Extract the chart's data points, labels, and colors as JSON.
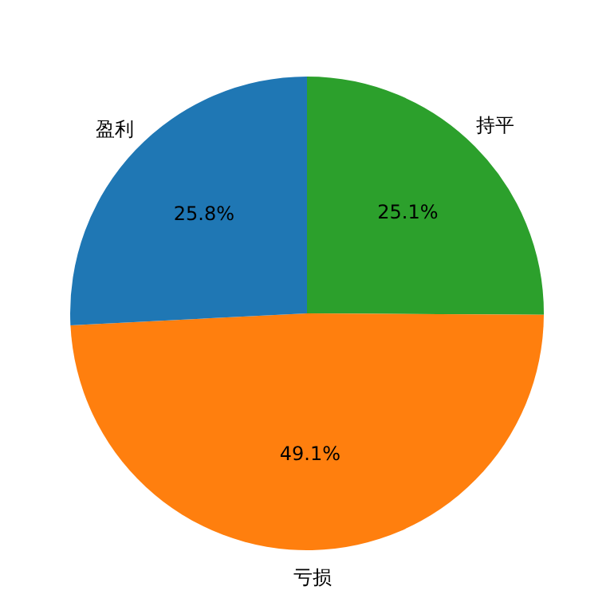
{
  "chart_data": {
    "type": "pie",
    "categories": [
      "盈利",
      "亏损",
      "持平"
    ],
    "values": [
      25.8,
      49.1,
      25.1
    ],
    "value_labels": [
      "25.8%",
      "49.1%",
      "25.1%"
    ],
    "colors": [
      "#1f77b4",
      "#ff7f0e",
      "#2ca02c"
    ],
    "legend": false
  }
}
